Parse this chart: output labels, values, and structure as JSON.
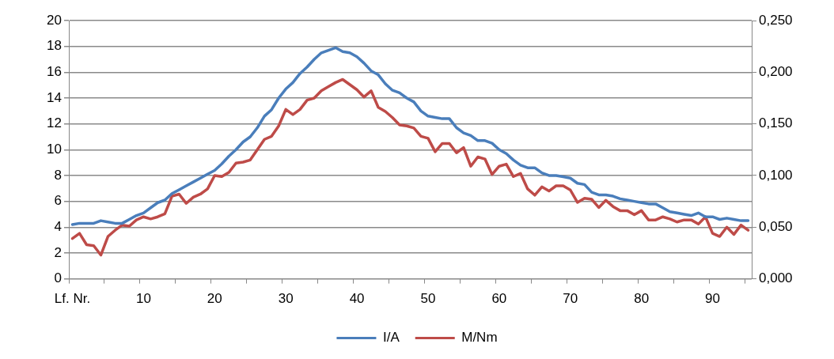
{
  "chart_data": {
    "type": "line",
    "categories": [
      "Lf. Nr.",
      null,
      null,
      null,
      null,
      null,
      null,
      null,
      null,
      null,
      "10",
      null,
      null,
      null,
      null,
      null,
      null,
      null,
      null,
      null,
      "20",
      null,
      null,
      null,
      null,
      null,
      null,
      null,
      null,
      null,
      "30",
      null,
      null,
      null,
      null,
      null,
      null,
      null,
      null,
      null,
      "40",
      null,
      null,
      null,
      null,
      null,
      null,
      null,
      null,
      null,
      "50",
      null,
      null,
      null,
      null,
      null,
      null,
      null,
      null,
      null,
      "60",
      null,
      null,
      null,
      null,
      null,
      null,
      null,
      null,
      null,
      "70",
      null,
      null,
      null,
      null,
      null,
      null,
      null,
      null,
      null,
      "80",
      null,
      null,
      null,
      null,
      null,
      null,
      null,
      null,
      null,
      "90",
      null,
      null,
      null,
      null,
      null
    ],
    "series": [
      {
        "name": "I/A",
        "color": "#4a7ebb",
        "values": [
          4.2,
          4.3,
          4.3,
          4.3,
          4.5,
          4.4,
          4.3,
          4.3,
          4.6,
          4.9,
          5.1,
          5.5,
          5.9,
          6.1,
          6.6,
          6.9,
          7.2,
          7.5,
          7.8,
          8.1,
          8.4,
          8.9,
          9.5,
          10.0,
          10.6,
          11.0,
          11.7,
          12.6,
          13.1,
          14.0,
          14.7,
          15.2,
          15.9,
          16.4,
          17.0,
          17.5,
          17.7,
          17.9,
          17.6,
          17.5,
          17.2,
          16.7,
          16.1,
          15.8,
          15.1,
          14.6,
          14.4,
          14.0,
          13.7,
          13.0,
          12.6,
          12.5,
          12.4,
          12.4,
          11.7,
          11.3,
          11.1,
          10.7,
          10.7,
          10.5,
          10.0,
          9.7,
          9.2,
          8.8,
          8.6,
          8.6,
          8.2,
          8.0,
          8.0,
          7.9,
          7.8,
          7.4,
          7.3,
          6.7,
          6.5,
          6.5,
          6.4,
          6.2,
          6.1,
          6.0,
          5.9,
          5.8,
          5.8,
          5.5,
          5.2,
          5.1,
          5.0,
          4.9,
          5.1,
          4.8,
          4.8,
          4.6,
          4.7,
          4.6,
          4.5,
          4.5
        ]
      },
      {
        "name": "M/Nm",
        "color": "#be4b48",
        "axis": "y2",
        "values": [
          0.039,
          0.044,
          0.033,
          0.032,
          0.023,
          0.041,
          0.047,
          0.052,
          0.051,
          0.057,
          0.06,
          0.058,
          0.06,
          0.063,
          0.08,
          0.082,
          0.073,
          0.079,
          0.082,
          0.087,
          0.1,
          0.099,
          0.103,
          0.112,
          0.113,
          0.115,
          0.125,
          0.135,
          0.138,
          0.148,
          0.164,
          0.159,
          0.164,
          0.173,
          0.175,
          0.182,
          0.186,
          0.19,
          0.193,
          0.188,
          0.183,
          0.176,
          0.182,
          0.166,
          0.162,
          0.156,
          0.149,
          0.148,
          0.146,
          0.138,
          0.136,
          0.123,
          0.131,
          0.131,
          0.122,
          0.127,
          0.109,
          0.118,
          0.116,
          0.101,
          0.109,
          0.111,
          0.099,
          0.102,
          0.087,
          0.081,
          0.089,
          0.085,
          0.09,
          0.09,
          0.086,
          0.074,
          0.078,
          0.077,
          0.069,
          0.076,
          0.07,
          0.066,
          0.066,
          0.062,
          0.066,
          0.057,
          0.057,
          0.06,
          0.058,
          0.055,
          0.057,
          0.057,
          0.053,
          0.06,
          0.044,
          0.041,
          0.05,
          0.043,
          0.052,
          0.047
        ]
      }
    ],
    "ylim": [
      0,
      20
    ],
    "yticks": [
      0,
      2,
      4,
      6,
      8,
      10,
      12,
      14,
      16,
      18,
      20
    ],
    "y2lim": [
      0,
      0.25
    ],
    "y2ticks": [
      {
        "value": 0,
        "label": "0,000"
      },
      {
        "value": 0.05,
        "label": "0,050"
      },
      {
        "value": 0.1,
        "label": "0,100"
      },
      {
        "value": 0.15,
        "label": "0,150"
      },
      {
        "value": 0.2,
        "label": "0,200"
      },
      {
        "value": 0.25,
        "label": "0,250"
      }
    ],
    "grid": "y",
    "legend": "bottom",
    "marker": "none",
    "line_style": "solid"
  }
}
